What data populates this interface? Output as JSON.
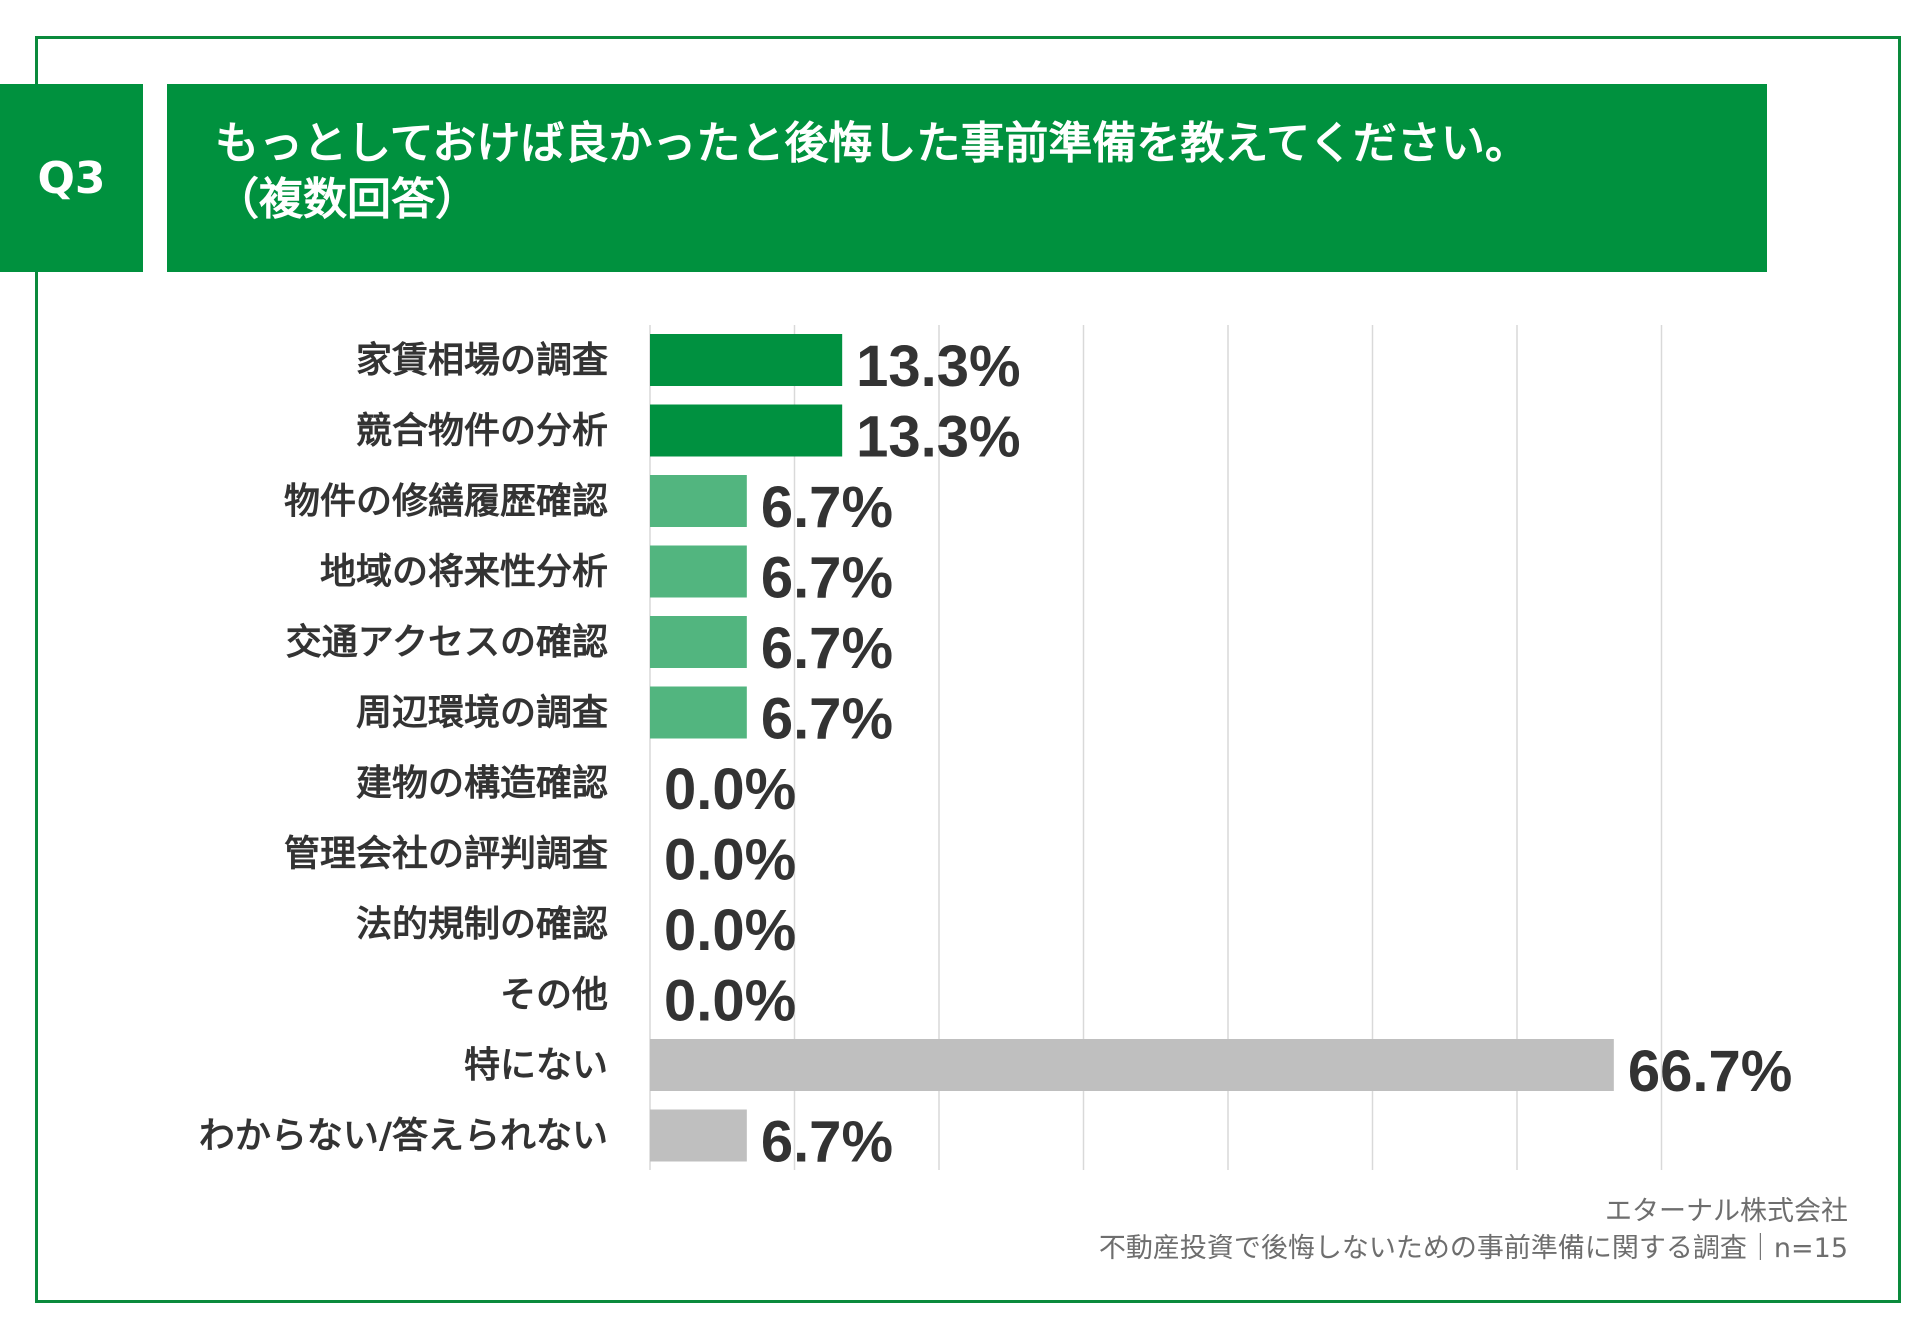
{
  "badge": "Q3",
  "title": {
    "line1": "もっとしておけば良かったと後悔した事前準備を教えてください。",
    "line2": "（複数回答）"
  },
  "footer": {
    "company": "エターナル株式会社",
    "survey_prefix": "不動産投資で後悔しないための事前準備に関する調査",
    "separator": "｜",
    "sample": "n=15"
  },
  "colors": {
    "brand_green": "#00913e",
    "bar_dark_green": "#009140",
    "bar_light_green": "#52b57f",
    "bar_gray": "#bfbfbf",
    "grid": "#d9d9d9",
    "label_text": "#333333"
  },
  "chart_data": {
    "type": "bar",
    "orientation": "horizontal",
    "categories": [
      "家賃相場の調査",
      "競合物件の分析",
      "物件の修繕履歴確認",
      "地域の将来性分析",
      "交通アクセスの確認",
      "周辺環境の調査",
      "建物の構造確認",
      "管理会社の評判調査",
      "法的規制の確認",
      "その他",
      "特にない",
      "わからない/答えられない"
    ],
    "values": [
      13.3,
      13.3,
      6.7,
      6.7,
      6.7,
      6.7,
      0.0,
      0.0,
      0.0,
      0.0,
      66.7,
      6.7
    ],
    "value_labels": [
      "13.3%",
      "13.3%",
      "6.7%",
      "6.7%",
      "6.7%",
      "6.7%",
      "0.0%",
      "0.0%",
      "0.0%",
      "0.0%",
      "66.7%",
      "6.7%"
    ],
    "bar_colors": [
      "dark_green",
      "dark_green",
      "light_green",
      "light_green",
      "light_green",
      "light_green",
      "light_green",
      "light_green",
      "light_green",
      "light_green",
      "gray",
      "gray"
    ],
    "xlim": [
      0,
      70
    ],
    "grid": true,
    "grid_step": 10,
    "legend": "none"
  }
}
